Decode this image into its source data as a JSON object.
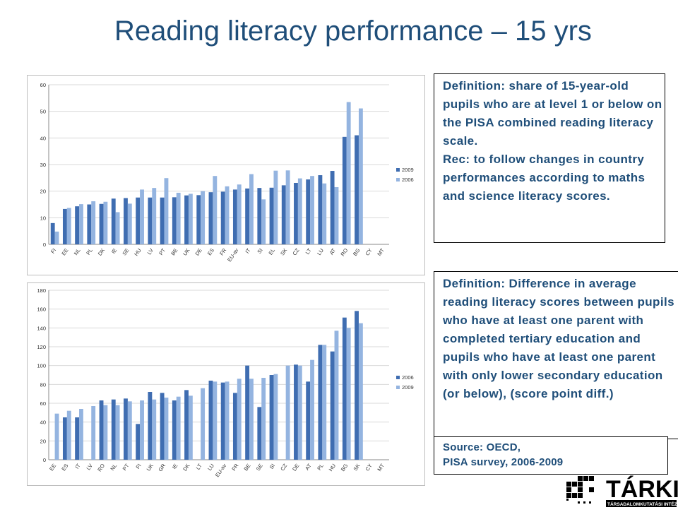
{
  "title": "Reading literacy performance – 15 yrs",
  "colors": {
    "dark": "#3f6db1",
    "light": "#94b4e0",
    "title": "#1f4e79"
  },
  "definition1": {
    "line1": "Definition: share of 15-year-old pupils who are at level 1 or below on the PISA combined reading literacy scale.",
    "line2": "Rec: to follow changes in country performances according to maths and science literacy scores."
  },
  "definition2": "Definition: Difference in average reading literacy scores between pupils who have at least one parent with completed tertiary education and pupils who have at least one parent with only lower secondary education (or below), (score point diff.)",
  "source": {
    "line1": "Source: OECD,",
    "line2": "PISA survey, 2006-2009"
  },
  "logo": {
    "text": "TÁRKI",
    "subtext": "TÁRSADALOMKUTATÁSI INTÉZET ZRT."
  },
  "chart_data": [
    {
      "type": "bar",
      "categories": [
        "FI",
        "EE",
        "NL",
        "PL",
        "DK",
        "IE",
        "SE",
        "HU",
        "LV",
        "PT",
        "BE",
        "UK",
        "DE",
        "ES",
        "FR",
        "EU-av",
        "IT",
        "SI",
        "EL",
        "SK",
        "CZ",
        "LT",
        "LU",
        "AT",
        "RO",
        "BG",
        "CY",
        "MT"
      ],
      "series": [
        {
          "name": "2009",
          "values": [
            8,
            13.3,
            14.3,
            15,
            15.2,
            17.2,
            17.4,
            17.6,
            17.6,
            17.6,
            17.7,
            18.4,
            18.5,
            19.6,
            19.8,
            20.6,
            21,
            21.2,
            21.3,
            22.2,
            23.1,
            24.4,
            26,
            27.6,
            40.4,
            41,
            null,
            null
          ]
        },
        {
          "name": "2006",
          "values": [
            4.8,
            13.7,
            15.1,
            16.2,
            16,
            12.1,
            15.3,
            20.6,
            21.2,
            24.9,
            19.4,
            19,
            20,
            25.7,
            21.8,
            22.5,
            26.4,
            16.9,
            27.7,
            27.8,
            24.8,
            25.7,
            22.9,
            21.5,
            53.5,
            51.1,
            null,
            null
          ]
        }
      ],
      "ylim": [
        0,
        60
      ],
      "yticks": [
        0,
        10,
        20,
        30,
        40,
        50,
        60
      ]
    },
    {
      "type": "bar",
      "categories": [
        "EE",
        "ES",
        "IT",
        "LV",
        "RO",
        "NL",
        "PT",
        "FI",
        "UK",
        "GR",
        "IE",
        "DK",
        "LT",
        "LU",
        "EU-av",
        "FR",
        "BE",
        "SE",
        "SI",
        "CZ",
        "DE",
        "AT",
        "PL",
        "HU",
        "BG",
        "SK",
        "CY",
        "MT"
      ],
      "series": [
        {
          "name": "2006",
          "values": [
            null,
            45,
            45,
            null,
            63,
            64,
            65,
            38,
            72,
            71,
            63,
            74,
            null,
            84,
            82,
            71,
            100,
            56,
            90,
            null,
            101,
            83,
            122,
            115,
            151,
            158,
            null,
            null
          ]
        },
        {
          "name": "2009",
          "values": [
            49,
            52,
            54,
            57,
            58,
            58,
            62,
            63,
            64,
            66,
            67,
            68,
            76,
            83,
            83,
            86,
            86,
            87,
            91,
            100,
            100,
            106,
            122,
            137,
            140,
            145,
            null,
            null
          ]
        }
      ],
      "ylim": [
        0,
        180
      ],
      "yticks": [
        0,
        20,
        40,
        60,
        80,
        100,
        120,
        140,
        160,
        180
      ]
    }
  ]
}
